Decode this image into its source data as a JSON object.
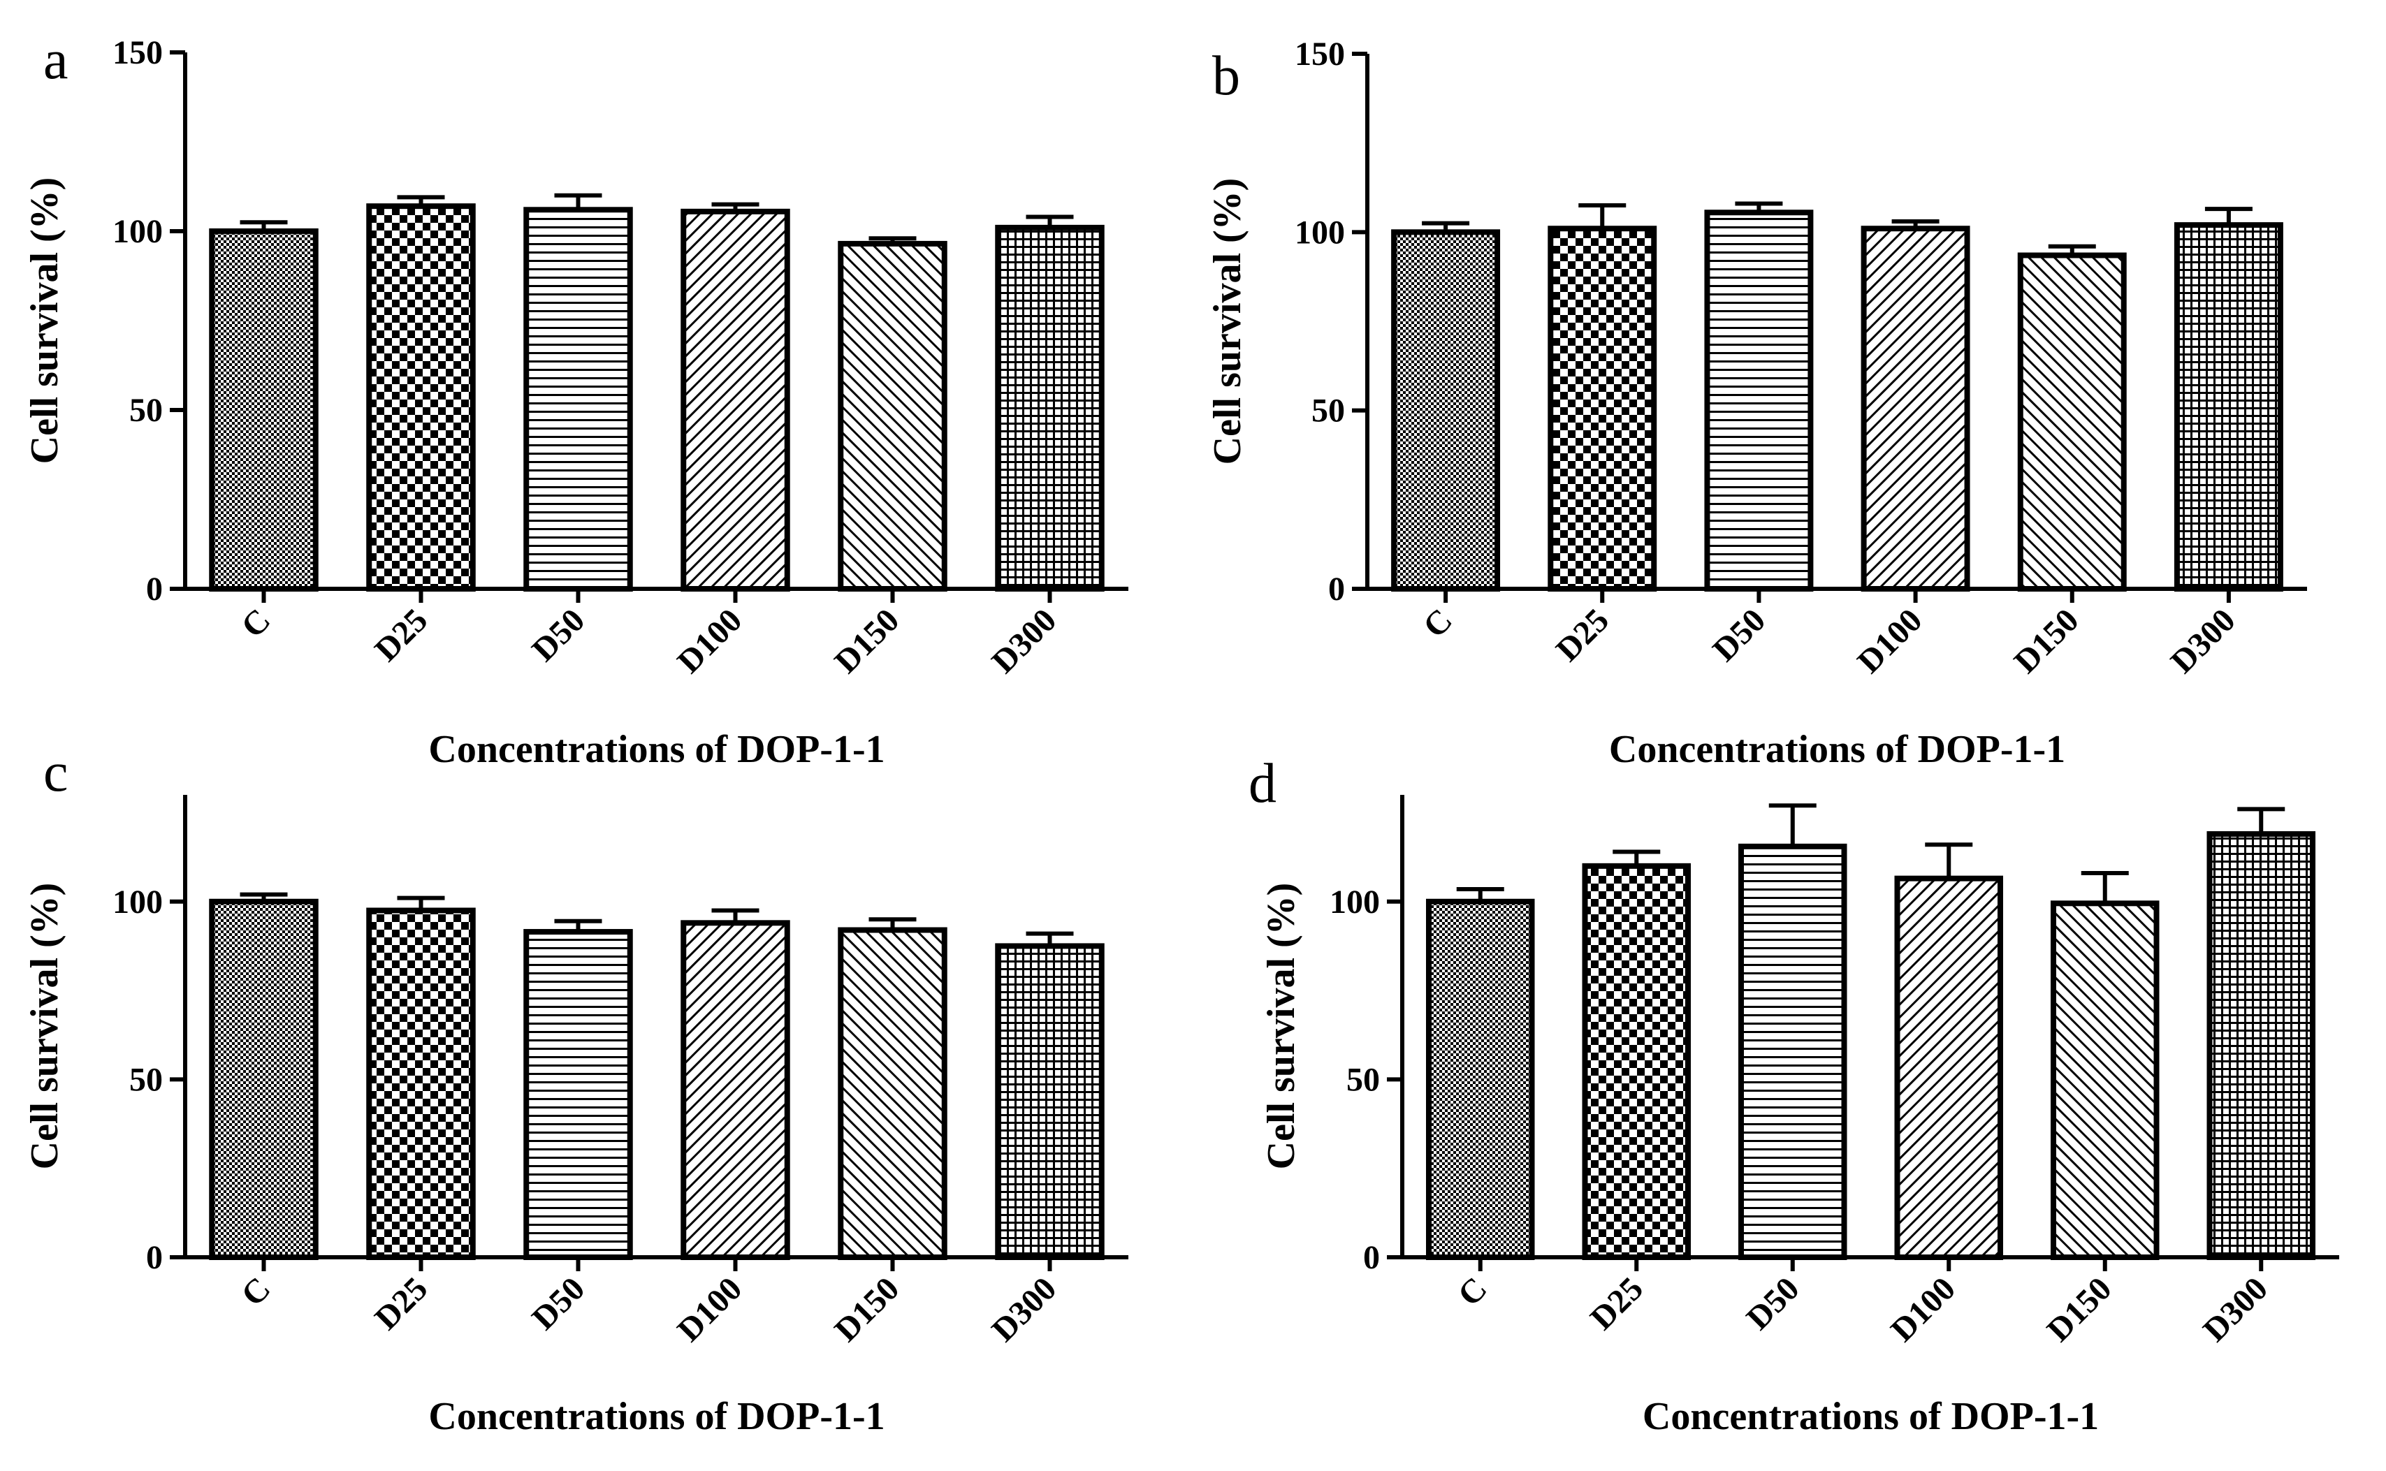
{
  "figure_colors": {
    "ink": "#000000",
    "background": "#ffffff"
  },
  "chart_data": [
    {
      "panel": "a",
      "type": "bar",
      "categories": [
        "C",
        "D25",
        "D50",
        "D100",
        "D150",
        "D300"
      ],
      "values": [
        100,
        107,
        106,
        105.5,
        96.5,
        101
      ],
      "errors": [
        2.5,
        2.5,
        4,
        2,
        1.5,
        3
      ],
      "ylim": [
        0,
        150
      ],
      "yticks": [
        0,
        50,
        100,
        150
      ],
      "xlabel": "Concentrations of DOP-1-1",
      "ylabel": "Cell survival (%)"
    },
    {
      "panel": "b",
      "type": "bar",
      "categories": [
        "C",
        "D25",
        "D50",
        "D100",
        "D150",
        "D300"
      ],
      "values": [
        100,
        101,
        105.5,
        101,
        93.5,
        102
      ],
      "errors": [
        2.5,
        6.5,
        2.5,
        2,
        2.5,
        4.5
      ],
      "ylim": [
        0,
        150
      ],
      "yticks": [
        0,
        50,
        100,
        150
      ],
      "xlabel": "Concentrations of DOP-1-1",
      "ylabel": "Cell survival (%)"
    },
    {
      "panel": "c",
      "type": "bar",
      "categories": [
        "C",
        "D25",
        "D50",
        "D100",
        "D150",
        "D300"
      ],
      "values": [
        100,
        97.5,
        91.5,
        94,
        92,
        87.5
      ],
      "errors": [
        2,
        3.5,
        3,
        3.5,
        3,
        3.5
      ],
      "ylim": [
        0,
        130
      ],
      "yticks": [
        0,
        50,
        100
      ],
      "xlabel": "Concentrations of DOP-1-1",
      "ylabel": "Cell survival (%)"
    },
    {
      "panel": "d",
      "type": "bar",
      "categories": [
        "C",
        "D25",
        "D50",
        "D100",
        "D150",
        "D300"
      ],
      "values": [
        100,
        110,
        115.5,
        106.5,
        99.5,
        119
      ],
      "errors": [
        3.5,
        4,
        11.5,
        9.5,
        8.5,
        7
      ],
      "ylim": [
        0,
        130
      ],
      "yticks": [
        0,
        50,
        100
      ],
      "xlabel": "Concentrations of DOP-1-1",
      "ylabel": "Cell survival (%)"
    }
  ]
}
